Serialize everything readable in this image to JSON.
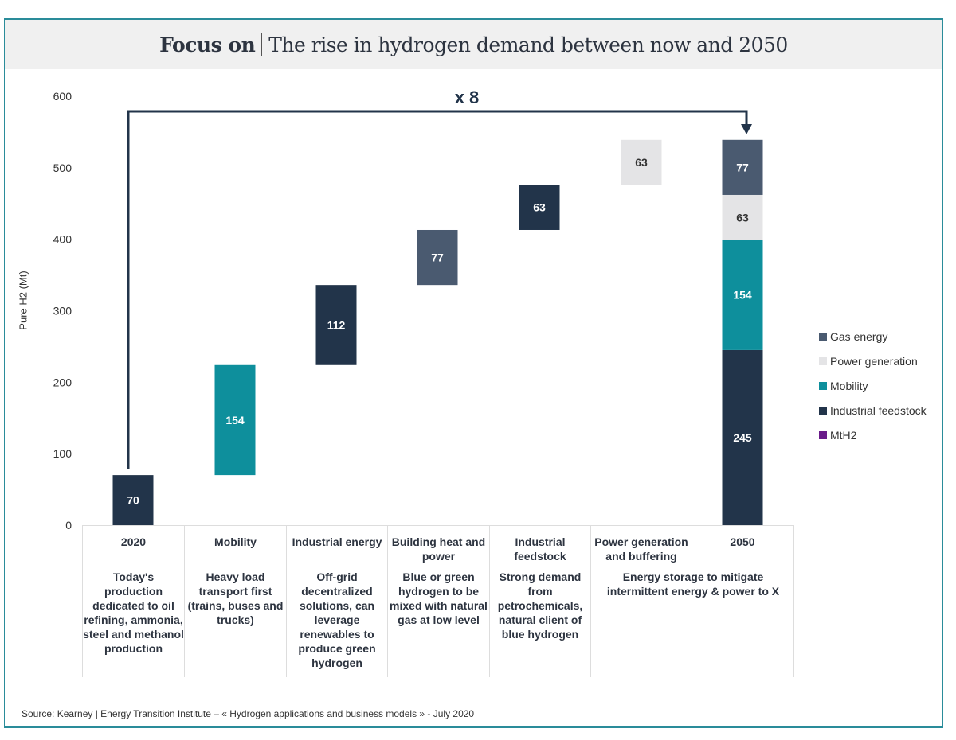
{
  "title": {
    "bold": "Focus on",
    "text": "The rise in hydrogen demand between now and 2050"
  },
  "multiplier_label": "x 8",
  "source": "Source: Kearney | Energy Transition Institute – « Hydrogen applications and business models » - July 2020",
  "colors": {
    "Gas energy": "#4a5a70",
    "Power generation": "#e4e4e6",
    "Mobility": "#0e8f9c",
    "Industrial feedstock": "#22344a",
    "MtH2": "#6a1b8a",
    "frame": "#2a8c9a"
  },
  "chart_data": {
    "type": "bar",
    "subtype": "waterfall",
    "ylabel": "Pure H2 (Mt)",
    "ylim": [
      0,
      600
    ],
    "yticks": [
      "0",
      "100",
      "200",
      "300",
      "400",
      "500",
      "600"
    ],
    "grid": false,
    "legend_placement": "right",
    "legend": [
      "Gas energy",
      "Power generation",
      "Mobility",
      "Industrial feedstock",
      "MtH2"
    ],
    "categories": [
      "2020",
      "Mobility",
      "Industrial energy",
      "Building heat and power",
      "Industrial feedstock",
      "Power generation and buffering",
      "2050"
    ],
    "steps": [
      {
        "category": "2020",
        "base": 0,
        "value": 70,
        "series": "Industrial feedstock",
        "label": "70"
      },
      {
        "category": "Mobility",
        "base": 70,
        "value": 154,
        "series": "Mobility",
        "label": "154"
      },
      {
        "category": "Industrial energy",
        "base": 224,
        "value": 112,
        "series": "Industrial feedstock",
        "label": "112"
      },
      {
        "category": "Building heat and power",
        "base": 336,
        "value": 77,
        "series": "Gas energy",
        "label": "77"
      },
      {
        "category": "Industrial feedstock",
        "base": 413,
        "value": 63,
        "series": "Industrial feedstock",
        "label": "63"
      },
      {
        "category": "Power generation and buffering",
        "base": 476,
        "value": 63,
        "series": "Power generation",
        "label": "63"
      }
    ],
    "total_2050": [
      {
        "series": "Industrial feedstock",
        "value": 245,
        "label": "245"
      },
      {
        "series": "Mobility",
        "value": 154,
        "label": "154"
      },
      {
        "series": "Power generation",
        "value": 63,
        "label": "63"
      },
      {
        "series": "Gas energy",
        "value": 77,
        "label": "77"
      }
    ]
  },
  "table": [
    {
      "head": "2020",
      "desc": "Today's production dedicated to oil refining, ammonia, steel and methanol production"
    },
    {
      "head": "Mobility",
      "desc": "Heavy load transport first (trains, buses and trucks)"
    },
    {
      "head": "Industrial energy",
      "desc": "Off-grid decentralized solutions, can leverage renewables to produce green hydrogen"
    },
    {
      "head": "Building heat and power",
      "desc": "Blue or green hydrogen to be mixed with natural gas at low level"
    },
    {
      "head": "Industrial feedstock",
      "desc": "Strong demand from petrochemicals, natural client of blue hydrogen"
    },
    {
      "head": "Power generation and buffering",
      "desc": "Energy storage to mitigate intermittent energy & power to X"
    },
    {
      "head": "2050",
      "desc": ""
    }
  ]
}
